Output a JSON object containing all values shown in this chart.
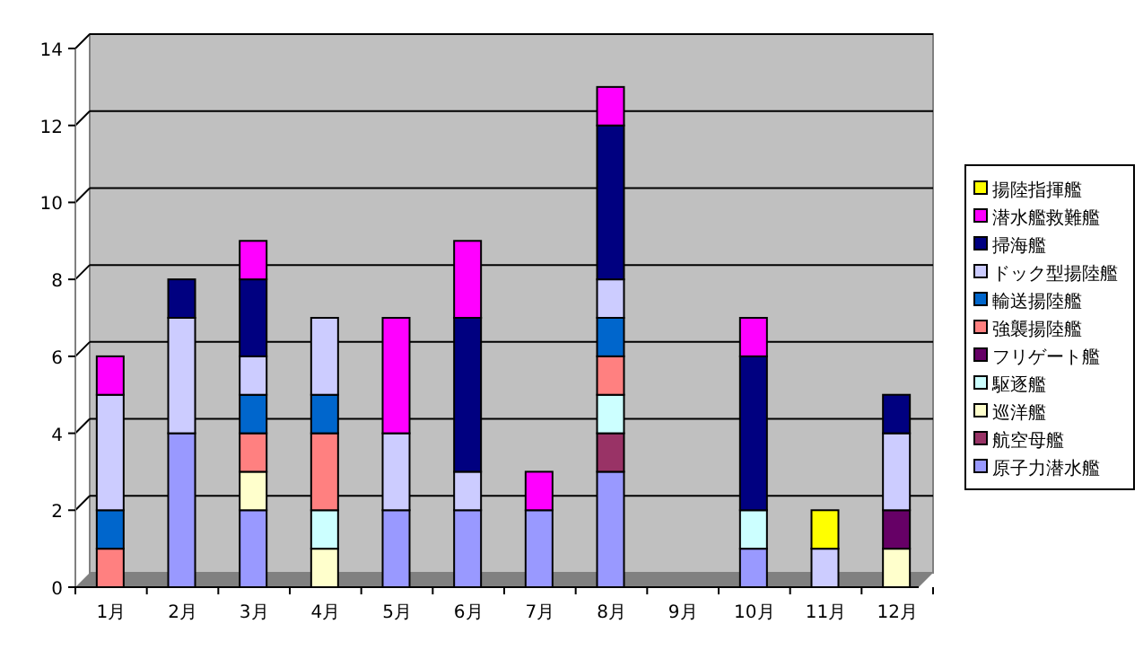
{
  "chart_data": {
    "type": "bar",
    "stacked": true,
    "categories": [
      "1月",
      "2月",
      "3月",
      "4月",
      "5月",
      "6月",
      "7月",
      "8月",
      "9月",
      "10月",
      "11月",
      "12月"
    ],
    "ylim": [
      0,
      14
    ],
    "yticks": [
      0,
      2,
      4,
      6,
      8,
      10,
      12,
      14
    ],
    "grid": "y",
    "legend": "right",
    "series": [
      {
        "name": "原子力潜水艦",
        "color": "#9999ff",
        "values": [
          null,
          4,
          2,
          null,
          2,
          2,
          2,
          3,
          null,
          1,
          null,
          null
        ]
      },
      {
        "name": "航空母艦",
        "color": "#993366",
        "values": [
          null,
          null,
          null,
          null,
          null,
          null,
          null,
          1,
          null,
          null,
          null,
          null
        ]
      },
      {
        "name": "巡洋艦",
        "color": "#ffffcc",
        "values": [
          null,
          null,
          1,
          1,
          null,
          null,
          null,
          null,
          null,
          null,
          null,
          1
        ]
      },
      {
        "name": "駆逐艦",
        "color": "#ccffff",
        "values": [
          null,
          null,
          null,
          1,
          null,
          null,
          null,
          1,
          null,
          1,
          null,
          null
        ]
      },
      {
        "name": "フリゲート艦",
        "color": "#660066",
        "values": [
          null,
          null,
          null,
          null,
          null,
          null,
          null,
          null,
          null,
          null,
          null,
          1
        ]
      },
      {
        "name": "強襲揚陸艦",
        "color": "#ff8080",
        "values": [
          1,
          null,
          1,
          2,
          null,
          null,
          null,
          1,
          null,
          null,
          null,
          null
        ]
      },
      {
        "name": "輸送揚陸艦",
        "color": "#0066cc",
        "values": [
          1,
          null,
          1,
          1,
          null,
          null,
          null,
          1,
          null,
          null,
          null,
          null
        ]
      },
      {
        "name": "ドック型揚陸艦",
        "color": "#ccccff",
        "values": [
          3,
          3,
          1,
          2,
          2,
          1,
          null,
          1,
          null,
          null,
          1,
          2
        ]
      },
      {
        "name": "掃海艦",
        "color": "#000080",
        "values": [
          null,
          1,
          2,
          null,
          null,
          4,
          null,
          4,
          null,
          4,
          null,
          1
        ]
      },
      {
        "name": "潜水艦救難艦",
        "color": "#ff00ff",
        "values": [
          1,
          null,
          1,
          null,
          3,
          2,
          1,
          1,
          null,
          1,
          null,
          null
        ]
      },
      {
        "name": "揚陸指揮艦",
        "color": "#ffff00",
        "values": [
          null,
          null,
          null,
          null,
          null,
          null,
          null,
          null,
          null,
          null,
          1,
          null
        ]
      }
    ]
  }
}
